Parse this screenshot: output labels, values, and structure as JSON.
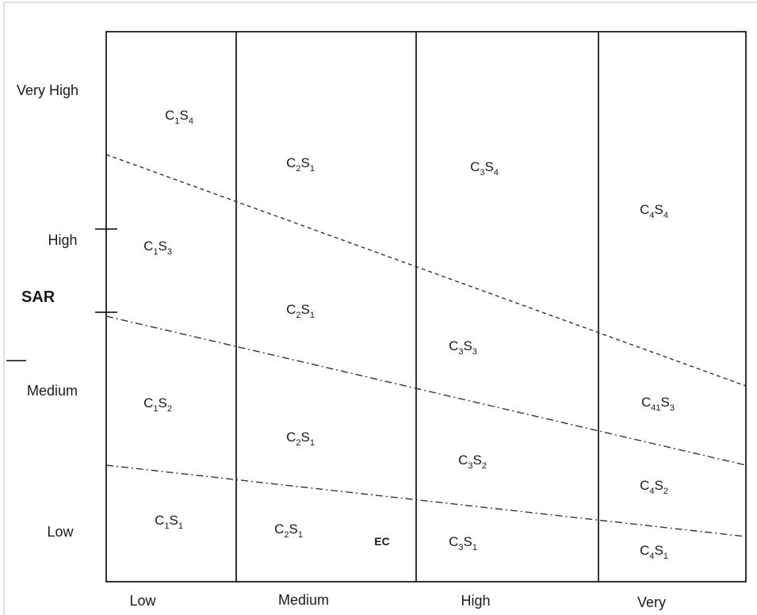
{
  "y_axis": {
    "title": "SAR",
    "labels": [
      "Very High",
      "High",
      "Medium",
      "Low"
    ]
  },
  "x_axis": {
    "title": "EC",
    "labels": [
      "Low",
      "Medium",
      "High",
      "Very"
    ]
  },
  "zones": [
    {
      "c": "1",
      "s": "4"
    },
    {
      "c": "1",
      "s": "3"
    },
    {
      "c": "1",
      "s": "2"
    },
    {
      "c": "1",
      "s": "1"
    },
    {
      "c": "2",
      "s": "1"
    },
    {
      "c": "2",
      "s": "1"
    },
    {
      "c": "2",
      "s": "1"
    },
    {
      "c": "2",
      "s": "1"
    },
    {
      "c": "3",
      "s": "4"
    },
    {
      "c": "3",
      "s": "3"
    },
    {
      "c": "3",
      "s": "2"
    },
    {
      "c": "3",
      "s": "1"
    },
    {
      "c": "4",
      "s": "4"
    },
    {
      "c": "41",
      "s": "3"
    },
    {
      "c": "4",
      "s": "2"
    },
    {
      "c": "4",
      "s": "1"
    }
  ]
}
